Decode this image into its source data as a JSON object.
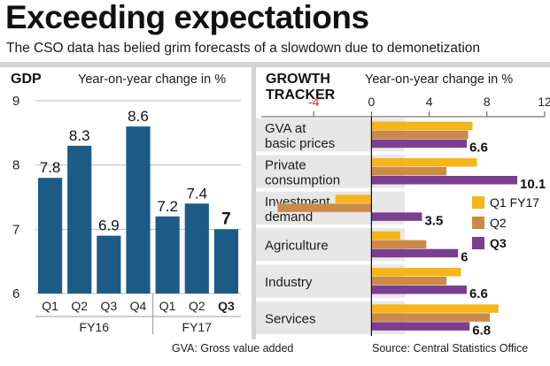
{
  "header": {
    "title": "Exceeding expectations",
    "subtitle": "The CSO data has belied grim forecasts of a slowdown due to demonetization"
  },
  "chart_data": [
    {
      "type": "bar",
      "title": "GDP",
      "subtitle": "Year-on-year change in %",
      "categories": [
        "Q1",
        "Q2",
        "Q3",
        "Q4",
        "Q1",
        "Q2",
        "Q3"
      ],
      "groups": [
        {
          "label": "FY16",
          "categories": [
            "Q1",
            "Q2",
            "Q3",
            "Q4"
          ]
        },
        {
          "label": "FY17",
          "categories": [
            "Q1",
            "Q2",
            "Q3"
          ]
        }
      ],
      "values": [
        7.8,
        8.3,
        6.9,
        8.6,
        7.2,
        7.4,
        7
      ],
      "data_labels": [
        "7.8",
        "8.3",
        "6.9",
        "8.6",
        "7.2",
        "7.4",
        "7"
      ],
      "highlight_index": 6,
      "ylim": [
        6,
        9
      ],
      "yticks": [
        "6",
        "7",
        "8",
        "9"
      ],
      "grid": true,
      "colors": {
        "bar": "#1d5b87",
        "highlight_label": "#111111"
      }
    },
    {
      "type": "bar",
      "orientation": "horizontal",
      "title_lines": [
        "GROWTH",
        "TRACKER"
      ],
      "subtitle": "Year-on-year change in %",
      "categories": [
        [
          "GVA at",
          "basic prices"
        ],
        [
          "Private",
          "consumption"
        ],
        [
          "Investment",
          "demand"
        ],
        [
          "Agriculture"
        ],
        [
          "Industry"
        ],
        [
          "Services"
        ]
      ],
      "series": [
        {
          "name": "Q1 FY17",
          "color": "#f5b51b",
          "values": [
            7,
            7.3,
            -2.5,
            2,
            6.2,
            8.8
          ]
        },
        {
          "name": "Q2",
          "color": "#cc8a48",
          "values": [
            6.7,
            5.2,
            -6.5,
            3.8,
            5.2,
            8.2
          ]
        },
        {
          "name": "Q3",
          "color": "#7a3f8e",
          "values": [
            6.6,
            10.1,
            3.5,
            6,
            6.6,
            6.8
          ]
        }
      ],
      "data_labels": [
        "6.6",
        "10.1",
        "3.5",
        "6",
        "6.6",
        "6.8"
      ],
      "xlim": [
        -8,
        12
      ],
      "xticks": [
        "-4",
        "0",
        "4",
        "8",
        "12"
      ],
      "legend_position": "right",
      "colors": {
        "row_bg": "#e7e7e7",
        "negative_tick": "#d6341c"
      }
    }
  ],
  "footer": {
    "note": "GVA: Gross value added",
    "source": "Source: Central Statistics Office"
  }
}
